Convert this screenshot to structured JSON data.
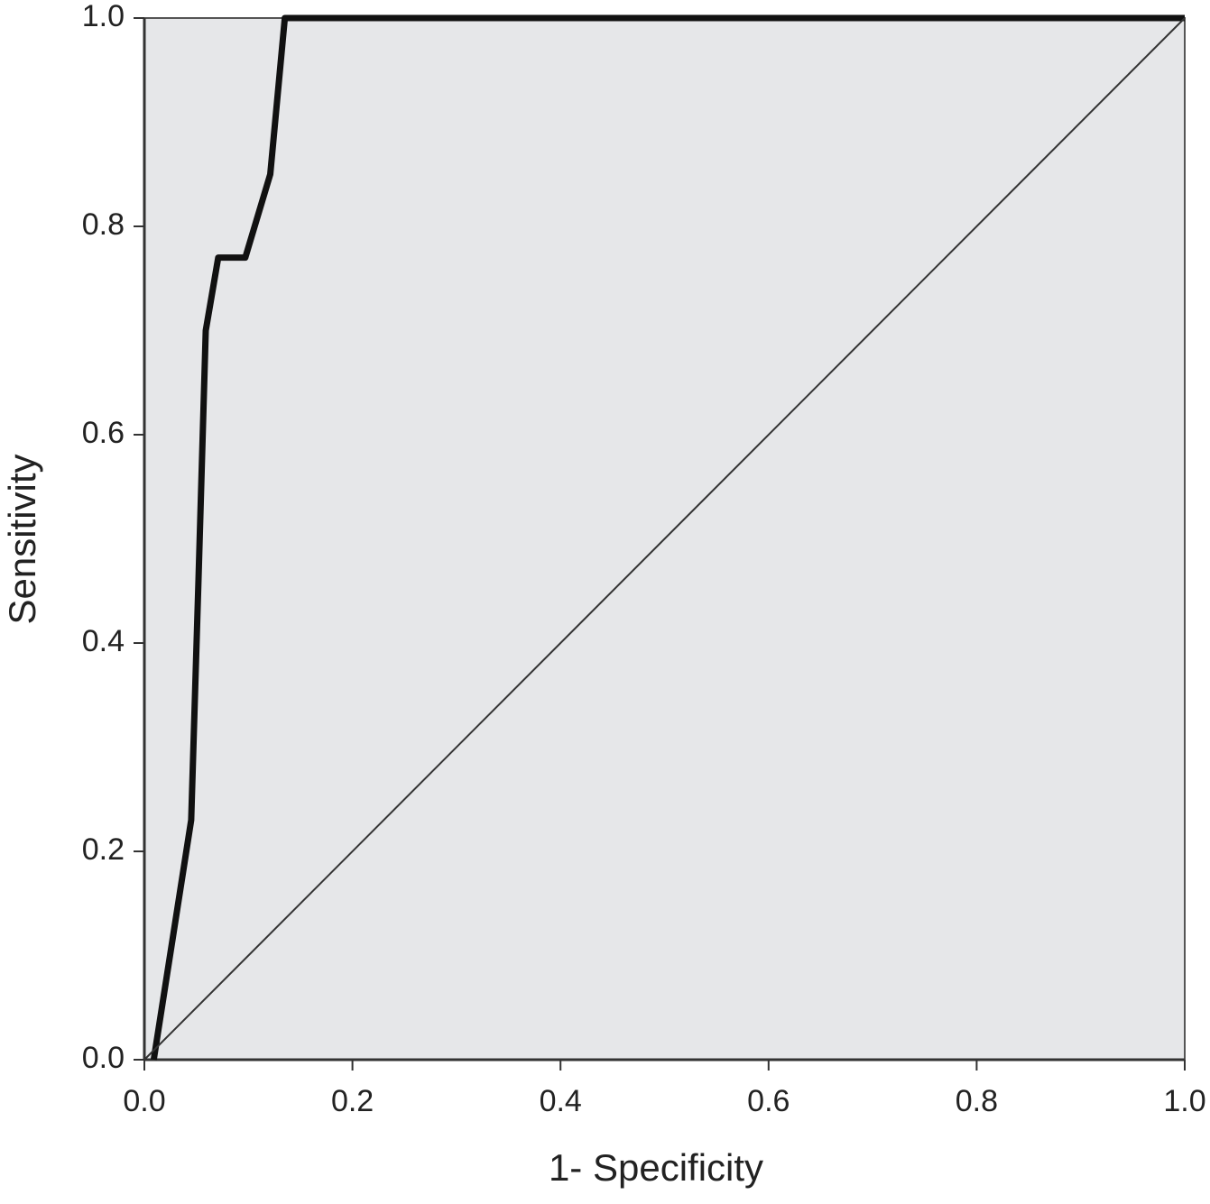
{
  "chart_data": {
    "type": "line",
    "xlabel": "1- Specificity",
    "ylabel": "Sensitivity",
    "xlim": [
      0,
      1
    ],
    "ylim": [
      0,
      1
    ],
    "xticks": [
      {
        "value": 0,
        "label": "0.0"
      },
      0.2,
      0.4,
      0.6,
      0.8,
      {
        "value": 1,
        "label": "1.0"
      }
    ],
    "yticks": [
      {
        "value": 0,
        "label": "0.0"
      },
      0.2,
      0.4,
      0.6,
      0.8,
      {
        "value": 1,
        "label": "1.0"
      }
    ],
    "background": "#e6e7e9",
    "series": [
      {
        "color": "#111111",
        "width": 7,
        "x": [
          0.009,
          0.045,
          0.052,
          0.059,
          0.071,
          0.097,
          0.121,
          0.135,
          1.0
        ],
        "values": [
          0,
          0.23,
          0.46,
          0.7,
          0.77,
          0.77,
          0.85,
          1.0,
          1.0
        ]
      },
      {
        "color": "#333333",
        "width": 2,
        "x": [
          0,
          1
        ],
        "values": [
          0,
          1
        ]
      }
    ]
  }
}
